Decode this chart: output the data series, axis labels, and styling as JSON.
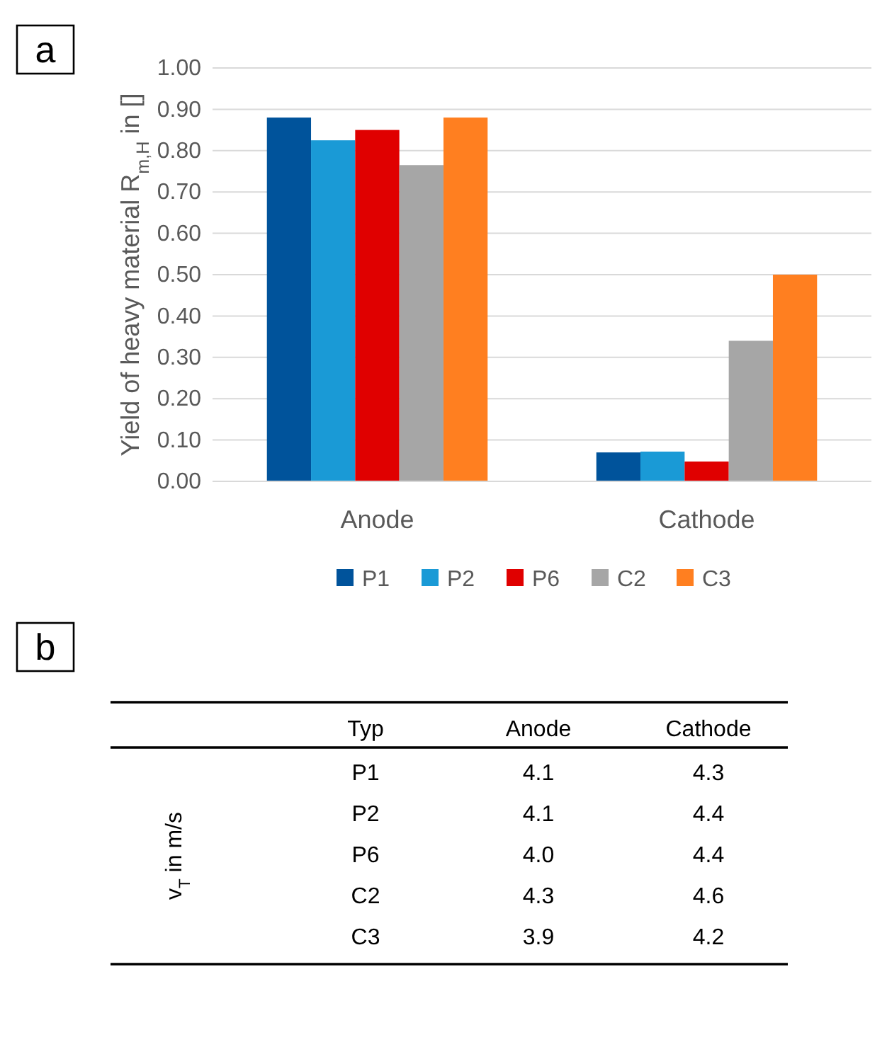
{
  "chart_data": [
    {
      "type": "bar",
      "title": "a",
      "ylabel": "Yield of heavy material R$_{m,H}$ in []",
      "categories": [
        "Anode",
        "Cathode"
      ],
      "series": [
        {
          "name": "P1",
          "color": "#00539b",
          "values": [
            0.88,
            0.07
          ]
        },
        {
          "name": "P2",
          "color": "#1a9ad6",
          "values": [
            0.825,
            0.072
          ]
        },
        {
          "name": "P6",
          "color": "#e00000",
          "values": [
            0.85,
            0.048
          ]
        },
        {
          "name": "C2",
          "color": "#a6a6a6",
          "values": [
            0.765,
            0.34
          ]
        },
        {
          "name": "C3",
          "color": "#ff7f20",
          "values": [
            0.88,
            0.5
          ]
        }
      ],
      "ylim": [
        0,
        1
      ],
      "yticks": [
        {
          "value": 0,
          "label": "0.00"
        },
        {
          "value": 0.1,
          "label": "0.10"
        },
        {
          "value": 0.2,
          "label": "0.20"
        },
        {
          "value": 0.3,
          "label": "0.30"
        },
        {
          "value": 0.4,
          "label": "0.40"
        },
        {
          "value": 0.5,
          "label": "0.50"
        },
        {
          "value": 0.6,
          "label": "0.60"
        },
        {
          "value": 0.7,
          "label": "0.70"
        },
        {
          "value": 0.8,
          "label": "0.80"
        },
        {
          "value": 0.9,
          "label": "0.90"
        },
        {
          "value": 1,
          "label": "1.00"
        }
      ],
      "grid": "y",
      "legend": "bottom"
    },
    {
      "type": "other",
      "title": "b",
      "ylabel": "v$_{T}$ in m/s",
      "annotations": [
        "Typ"
      ],
      "categories": [
        "P1",
        "P2",
        "P6",
        "C2",
        "C3"
      ],
      "series": [
        {
          "name": "Anode",
          "values": [
            4.1,
            4.1,
            4.0,
            4.3,
            3.9
          ],
          "value_labels": [
            "4.1",
            "4.1",
            "4.0",
            "4.3",
            "3.9"
          ]
        },
        {
          "name": "Cathode",
          "values": [
            4.3,
            4.4,
            4.4,
            4.6,
            4.2
          ],
          "value_labels": [
            "4.3",
            "4.4",
            "4.4",
            "4.6",
            "4.2"
          ]
        }
      ]
    }
  ]
}
